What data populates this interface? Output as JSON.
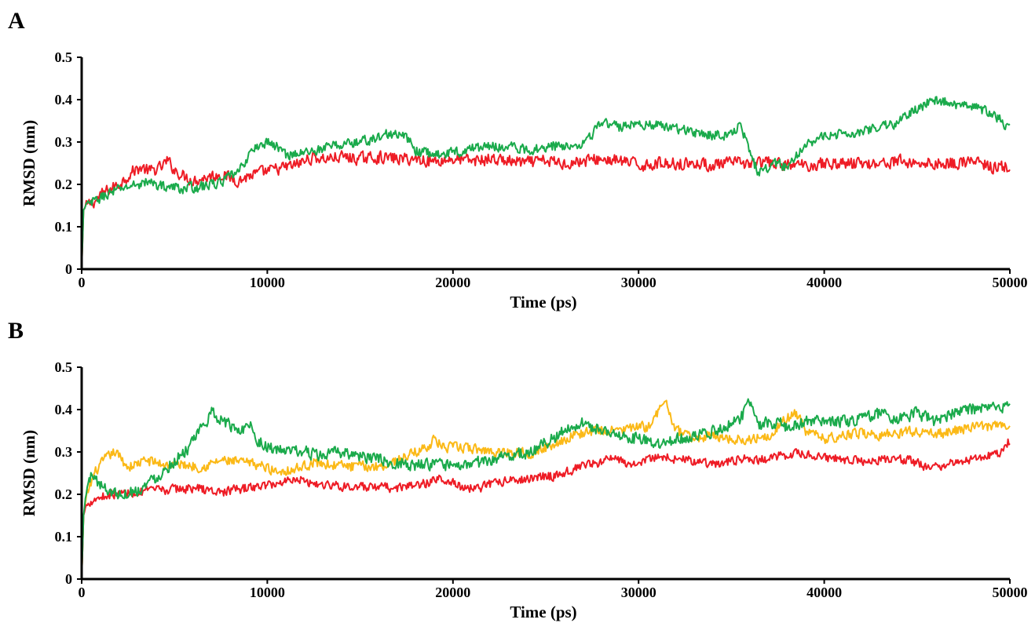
{
  "colors": {
    "red": "#ee1c25",
    "green": "#1aaa4b",
    "yellow": "#fbb917",
    "axis": "#000000"
  },
  "chart_data": [
    {
      "panel": "A",
      "type": "line",
      "title": "",
      "xlabel": "Time (ps)",
      "ylabel": "RMSD (nm)",
      "xlim": [
        0,
        50000
      ],
      "ylim": [
        0,
        0.5
      ],
      "xticks": [
        "0",
        "10000",
        "20000",
        "30000",
        "40000",
        "50000"
      ],
      "yticks": [
        "0",
        "0.1",
        "0.2",
        "0.3",
        "0.4",
        "0.5"
      ],
      "grid": false,
      "legend": "none",
      "series": [
        {
          "color": "#ee1c25",
          "noise": 0.012,
          "x": [
            0,
            100,
            300,
            700,
            1200,
            2000,
            2700,
            3200,
            3700,
            4300,
            4600,
            5000,
            5500,
            6000,
            6500,
            7000,
            7500,
            8000,
            8500,
            9000,
            9500,
            10000,
            10500,
            11000,
            11500,
            12000,
            12500,
            13000,
            14000,
            15000,
            16000,
            17000,
            18000,
            19000,
            20000,
            21000,
            22000,
            23000,
            24000,
            25000,
            26000,
            27000,
            28000,
            29000,
            30000,
            31000,
            32000,
            33000,
            34000,
            35000,
            36000,
            37000,
            38000,
            39000,
            40000,
            41000,
            42000,
            43000,
            44000,
            45000,
            46000,
            47000,
            48000,
            49000,
            50000
          ],
          "y": [
            0.0,
            0.14,
            0.15,
            0.16,
            0.18,
            0.2,
            0.23,
            0.24,
            0.23,
            0.24,
            0.255,
            0.235,
            0.22,
            0.21,
            0.215,
            0.22,
            0.225,
            0.215,
            0.21,
            0.22,
            0.225,
            0.23,
            0.235,
            0.24,
            0.245,
            0.255,
            0.265,
            0.26,
            0.265,
            0.26,
            0.265,
            0.26,
            0.26,
            0.255,
            0.26,
            0.255,
            0.26,
            0.255,
            0.25,
            0.255,
            0.25,
            0.255,
            0.26,
            0.255,
            0.245,
            0.25,
            0.25,
            0.25,
            0.245,
            0.25,
            0.25,
            0.25,
            0.245,
            0.245,
            0.25,
            0.25,
            0.25,
            0.25,
            0.255,
            0.25,
            0.25,
            0.25,
            0.255,
            0.24,
            0.24
          ]
        },
        {
          "color": "#1aaa4b",
          "noise": 0.01,
          "x": [
            0,
            100,
            300,
            700,
            1500,
            2500,
            3500,
            4500,
            5500,
            6500,
            7500,
            8500,
            9000,
            9500,
            10000,
            10500,
            11000,
            12000,
            13000,
            14000,
            15000,
            16000,
            16500,
            17000,
            17500,
            18000,
            19000,
            20000,
            21000,
            22000,
            23000,
            24000,
            25000,
            26000,
            27000,
            27500,
            28000,
            29000,
            30000,
            31000,
            32000,
            33000,
            34000,
            35000,
            35500,
            36000,
            36500,
            37000,
            37500,
            38000,
            38500,
            39000,
            40000,
            41000,
            42000,
            43000,
            44000,
            45000,
            46000,
            47000,
            48000,
            49000,
            50000
          ],
          "y": [
            0.0,
            0.14,
            0.15,
            0.16,
            0.18,
            0.195,
            0.205,
            0.195,
            0.19,
            0.195,
            0.205,
            0.23,
            0.27,
            0.29,
            0.3,
            0.29,
            0.27,
            0.275,
            0.285,
            0.295,
            0.3,
            0.31,
            0.32,
            0.315,
            0.31,
            0.28,
            0.27,
            0.275,
            0.285,
            0.29,
            0.29,
            0.28,
            0.29,
            0.29,
            0.3,
            0.32,
            0.345,
            0.335,
            0.345,
            0.34,
            0.33,
            0.325,
            0.315,
            0.32,
            0.345,
            0.27,
            0.225,
            0.24,
            0.25,
            0.24,
            0.27,
            0.3,
            0.31,
            0.32,
            0.325,
            0.335,
            0.345,
            0.38,
            0.4,
            0.39,
            0.38,
            0.37,
            0.33
          ]
        }
      ]
    },
    {
      "panel": "B",
      "type": "line",
      "title": "",
      "xlabel": "Time (ps)",
      "ylabel": "RMSD (nm)",
      "xlim": [
        0,
        50000
      ],
      "ylim": [
        0,
        0.5
      ],
      "xticks": [
        "0",
        "10000",
        "20000",
        "30000",
        "40000",
        "50000"
      ],
      "yticks": [
        "0",
        "0.1",
        "0.2",
        "0.3",
        "0.4",
        "0.5"
      ],
      "grid": false,
      "legend": "none",
      "series": [
        {
          "color": "#fbb917",
          "noise": 0.01,
          "x": [
            0,
            100,
            300,
            700,
            1200,
            1800,
            2500,
            3500,
            4500,
            5500,
            6500,
            7500,
            8500,
            9500,
            10500,
            11500,
            12500,
            13500,
            14500,
            15500,
            16500,
            17500,
            18500,
            19000,
            19500,
            20500,
            21500,
            22500,
            23500,
            24500,
            25500,
            26500,
            27500,
            28500,
            29500,
            30500,
            31000,
            31500,
            32000,
            33000,
            34000,
            35000,
            36000,
            37000,
            38000,
            38500,
            39000,
            40000,
            41000,
            42000,
            43000,
            44000,
            45000,
            46000,
            47000,
            48000,
            49000,
            50000
          ],
          "y": [
            0.0,
            0.15,
            0.2,
            0.25,
            0.28,
            0.3,
            0.265,
            0.28,
            0.27,
            0.27,
            0.265,
            0.28,
            0.275,
            0.27,
            0.255,
            0.26,
            0.275,
            0.27,
            0.265,
            0.265,
            0.27,
            0.29,
            0.31,
            0.33,
            0.31,
            0.31,
            0.305,
            0.3,
            0.3,
            0.3,
            0.32,
            0.34,
            0.35,
            0.35,
            0.355,
            0.36,
            0.39,
            0.42,
            0.35,
            0.33,
            0.34,
            0.33,
            0.33,
            0.34,
            0.38,
            0.39,
            0.35,
            0.33,
            0.34,
            0.345,
            0.34,
            0.345,
            0.35,
            0.34,
            0.35,
            0.36,
            0.36,
            0.36
          ]
        },
        {
          "color": "#ee1c25",
          "noise": 0.009,
          "x": [
            0,
            100,
            300,
            700,
            1500,
            3000,
            4500,
            6000,
            7500,
            9000,
            10500,
            11500,
            12500,
            14000,
            15500,
            17000,
            18500,
            19500,
            20500,
            21500,
            22500,
            23500,
            24500,
            25500,
            26500,
            27500,
            28500,
            29500,
            30500,
            31500,
            32500,
            33500,
            34500,
            35500,
            36500,
            37500,
            38500,
            39500,
            40500,
            41500,
            42500,
            43500,
            44500,
            45500,
            46500,
            47500,
            48500,
            49500,
            50000
          ],
          "y": [
            0.0,
            0.15,
            0.18,
            0.19,
            0.2,
            0.205,
            0.21,
            0.215,
            0.205,
            0.215,
            0.225,
            0.24,
            0.225,
            0.22,
            0.215,
            0.215,
            0.225,
            0.24,
            0.215,
            0.215,
            0.23,
            0.235,
            0.24,
            0.245,
            0.26,
            0.27,
            0.285,
            0.27,
            0.285,
            0.29,
            0.28,
            0.275,
            0.27,
            0.285,
            0.28,
            0.29,
            0.295,
            0.29,
            0.285,
            0.28,
            0.28,
            0.285,
            0.28,
            0.265,
            0.27,
            0.28,
            0.29,
            0.3,
            0.33
          ]
        },
        {
          "color": "#1aaa4b",
          "noise": 0.012,
          "x": [
            0,
            100,
            300,
            600,
            1000,
            2000,
            3000,
            4000,
            5000,
            6000,
            6500,
            7000,
            7500,
            8000,
            8500,
            9000,
            9500,
            10000,
            11000,
            12000,
            13000,
            14000,
            15000,
            16000,
            17000,
            18000,
            19000,
            20000,
            21000,
            22000,
            23000,
            24000,
            25000,
            26000,
            27000,
            28000,
            29000,
            30000,
            31000,
            32000,
            33000,
            34000,
            35000,
            35500,
            36000,
            36500,
            37000,
            38000,
            39000,
            40000,
            41000,
            42000,
            43000,
            44000,
            45000,
            46000,
            47000,
            48000,
            49000,
            50000
          ],
          "y": [
            0.0,
            0.15,
            0.22,
            0.25,
            0.22,
            0.2,
            0.21,
            0.24,
            0.28,
            0.32,
            0.36,
            0.39,
            0.38,
            0.36,
            0.35,
            0.37,
            0.33,
            0.31,
            0.3,
            0.3,
            0.29,
            0.3,
            0.29,
            0.28,
            0.275,
            0.27,
            0.27,
            0.265,
            0.27,
            0.28,
            0.29,
            0.3,
            0.32,
            0.35,
            0.37,
            0.35,
            0.34,
            0.33,
            0.32,
            0.33,
            0.34,
            0.35,
            0.37,
            0.38,
            0.42,
            0.36,
            0.37,
            0.36,
            0.37,
            0.37,
            0.37,
            0.38,
            0.39,
            0.38,
            0.39,
            0.37,
            0.39,
            0.4,
            0.4,
            0.41
          ]
        }
      ]
    }
  ]
}
